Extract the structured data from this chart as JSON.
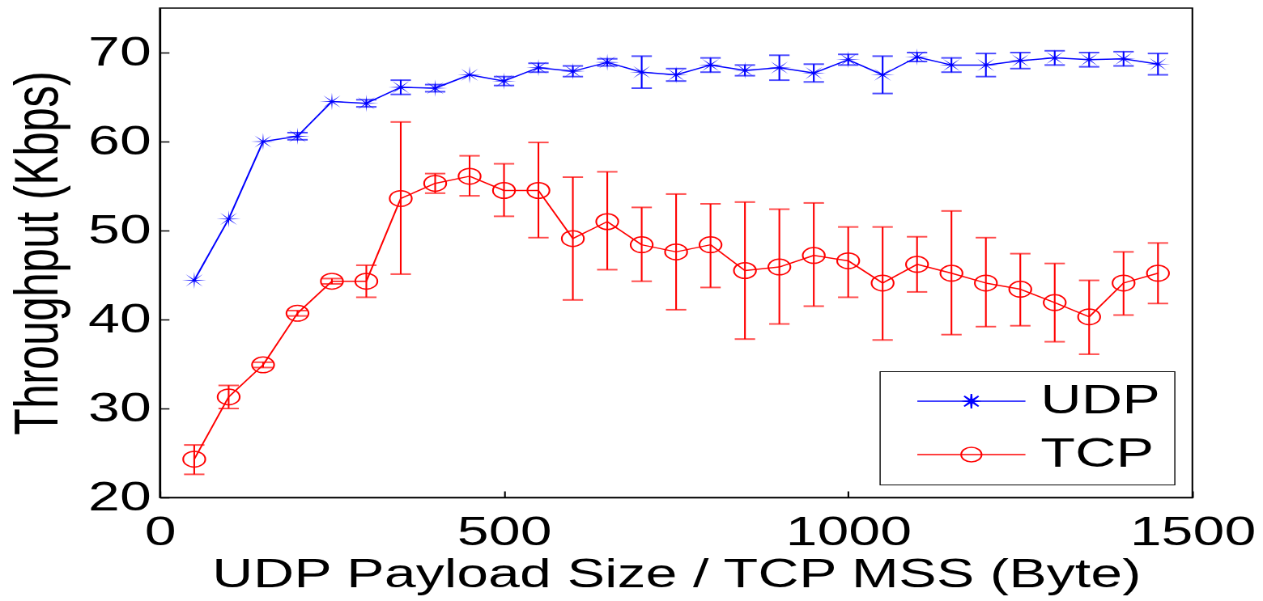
{
  "chart_data": {
    "type": "line",
    "xlabel": "UDP Payload Size / TCP MSS (Byte)",
    "ylabel": "Throughput (Kbps)",
    "x": [
      50,
      100,
      150,
      200,
      250,
      300,
      350,
      400,
      450,
      500,
      550,
      600,
      650,
      700,
      750,
      800,
      850,
      900,
      950,
      1000,
      1050,
      1100,
      1150,
      1200,
      1250,
      1300,
      1350,
      1400,
      1450
    ],
    "series": [
      {
        "name": "UDP",
        "color": "#0000ff",
        "marker": "star",
        "values": [
          44.4,
          51.3,
          60.0,
          60.6,
          64.5,
          64.3,
          66.1,
          66.0,
          67.5,
          66.8,
          68.3,
          67.9,
          68.9,
          67.8,
          67.5,
          68.6,
          68.0,
          68.3,
          67.7,
          69.2,
          67.5,
          69.5,
          68.6,
          68.6,
          69.1,
          69.4,
          69.2,
          69.3,
          68.7
        ],
        "errors": [
          null,
          null,
          null,
          0.4,
          null,
          0.4,
          0.8,
          0.4,
          null,
          0.5,
          0.5,
          0.6,
          0.4,
          1.8,
          0.7,
          0.8,
          0.6,
          1.4,
          1.0,
          0.6,
          2.1,
          0.5,
          0.8,
          1.3,
          0.9,
          0.8,
          0.8,
          0.8,
          1.2
        ]
      },
      {
        "name": "TCP",
        "color": "#ff0000",
        "marker": "circle",
        "values": [
          24.3,
          31.3,
          34.9,
          40.7,
          44.3,
          44.3,
          53.6,
          55.3,
          56.1,
          54.5,
          54.5,
          49.1,
          51.0,
          48.4,
          47.6,
          48.4,
          45.5,
          45.9,
          47.2,
          46.6,
          44.1,
          46.2,
          45.2,
          44.1,
          43.4,
          41.9,
          40.3,
          44.1,
          45.2
        ],
        "errors": [
          [
            22.6,
            25.9
          ],
          [
            30.0,
            32.6
          ],
          0.3,
          0.3,
          0.3,
          [
            42.5,
            46.1
          ],
          [
            45.1,
            62.2
          ],
          [
            54.2,
            56.4
          ],
          [
            53.9,
            58.4
          ],
          [
            51.6,
            57.5
          ],
          [
            49.2,
            59.9
          ],
          [
            42.2,
            56.0
          ],
          [
            45.6,
            56.6
          ],
          [
            44.3,
            52.6
          ],
          [
            41.1,
            54.1
          ],
          [
            43.6,
            53.0
          ],
          [
            37.8,
            53.2
          ],
          [
            39.5,
            52.4
          ],
          [
            41.5,
            53.1
          ],
          [
            42.5,
            50.4
          ],
          [
            37.7,
            50.4
          ],
          [
            43.1,
            49.3
          ],
          [
            38.3,
            52.2
          ],
          [
            39.2,
            49.2
          ],
          [
            39.3,
            47.4
          ],
          [
            37.5,
            46.3
          ],
          [
            36.1,
            44.4
          ],
          [
            40.5,
            47.6
          ],
          [
            41.8,
            48.6
          ]
        ]
      }
    ],
    "xlim": [
      0,
      1500
    ],
    "xticks": [
      0,
      500,
      1000,
      1500
    ],
    "ylim": [
      20,
      75
    ],
    "yticks": [
      20,
      30,
      40,
      50,
      60,
      70
    ],
    "grid": false,
    "legend": "bottom right",
    "line_style": "solid"
  }
}
